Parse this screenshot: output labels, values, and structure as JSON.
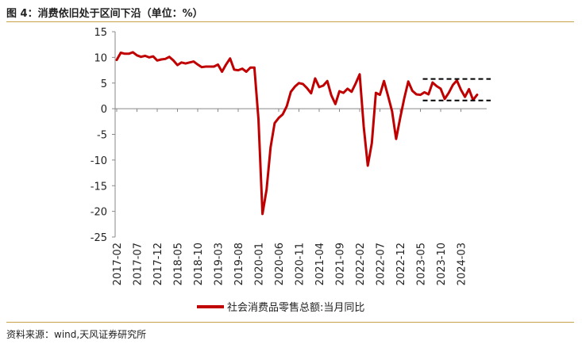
{
  "title": "图 4：消费依旧处于区间下沿（单位：%）",
  "source": "资料来源：wind,天风证券研究所",
  "colors": {
    "series": "#c00000",
    "axis": "#888888",
    "band": "#000000",
    "rule": "#c9a24a"
  },
  "chart_data": {
    "type": "line",
    "title": "",
    "xlabel": "",
    "ylabel": "",
    "ylim": [
      -25,
      15
    ],
    "yticks": [
      "15",
      "10",
      "5",
      "0",
      "-5",
      "-10",
      "-15",
      "-20",
      "-25"
    ],
    "ytick_values": [
      15,
      10,
      5,
      0,
      -5,
      -10,
      -15,
      -20,
      -25
    ],
    "xticks": [
      "2017-02",
      "2017-07",
      "2017-12",
      "2018-05",
      "2018-10",
      "2019-03",
      "2019-08",
      "2020-01",
      "2020-06",
      "2020-11",
      "2021-04",
      "2021-09",
      "2022-02",
      "2022-07",
      "2022-12",
      "2023-05",
      "2023-10",
      "2024-03"
    ],
    "x_start": "2017-02",
    "series": [
      {
        "name": "社会消费品零售总额:当月同比",
        "values": [
          9.5,
          10.9,
          10.7,
          10.7,
          11.0,
          10.4,
          10.1,
          10.3,
          10.0,
          10.2,
          9.4,
          9.6,
          9.7,
          10.1,
          9.4,
          8.5,
          9.0,
          8.8,
          9.0,
          9.2,
          8.6,
          8.1,
          8.2,
          8.2,
          8.2,
          8.6,
          7.2,
          8.6,
          9.8,
          7.6,
          7.5,
          7.8,
          7.2,
          8.0,
          8.0,
          -2.0,
          -20.5,
          -15.8,
          -7.5,
          -2.8,
          -1.8,
          -1.1,
          0.5,
          3.3,
          4.3,
          5.0,
          4.8,
          4.0,
          3.0,
          5.9,
          4.2,
          4.5,
          5.4,
          2.6,
          0.9,
          3.4,
          3.1,
          3.9,
          3.3,
          4.9,
          6.7,
          -3.5,
          -11.1,
          -6.7,
          3.1,
          2.7,
          5.4,
          2.5,
          -0.5,
          -5.9,
          -1.8,
          2.0,
          5.3,
          3.5,
          2.8,
          2.7,
          3.2,
          2.8,
          5.1,
          4.4,
          3.9,
          1.9,
          3.1,
          4.6,
          5.5,
          3.7,
          2.3,
          3.8,
          1.7,
          2.7
        ],
        "color": "#c00000"
      }
    ],
    "band": {
      "upper": 5.8,
      "lower": 1.6,
      "from": "2023-05",
      "to": "2024-08"
    },
    "legend": "bottom-center",
    "grid": false
  }
}
